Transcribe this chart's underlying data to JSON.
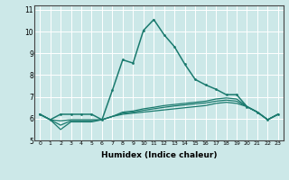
{
  "xlabel": "Humidex (Indice chaleur)",
  "x_values": [
    0,
    1,
    2,
    3,
    4,
    5,
    6,
    7,
    8,
    9,
    10,
    11,
    12,
    13,
    14,
    15,
    16,
    17,
    18,
    19,
    20,
    21,
    22,
    23
  ],
  "main_line_y": [
    6.2,
    5.95,
    6.2,
    6.2,
    6.2,
    6.2,
    5.95,
    7.3,
    8.7,
    8.55,
    10.05,
    10.55,
    9.85,
    9.3,
    8.5,
    7.8,
    7.55,
    7.35,
    7.1,
    7.1,
    6.55,
    6.3,
    5.95,
    6.2
  ],
  "line2_y": [
    6.2,
    5.95,
    5.5,
    5.85,
    5.85,
    5.85,
    5.95,
    6.1,
    6.2,
    6.25,
    6.3,
    6.35,
    6.4,
    6.45,
    6.5,
    6.55,
    6.6,
    6.7,
    6.75,
    6.7,
    6.55,
    6.3,
    5.95,
    6.2
  ],
  "line3_y": [
    6.2,
    5.95,
    5.7,
    5.9,
    5.9,
    5.9,
    5.95,
    6.1,
    6.25,
    6.3,
    6.38,
    6.45,
    6.52,
    6.58,
    6.63,
    6.68,
    6.72,
    6.8,
    6.85,
    6.8,
    6.55,
    6.3,
    5.95,
    6.2
  ],
  "line4_y": [
    6.2,
    5.95,
    5.9,
    5.95,
    5.95,
    5.95,
    5.95,
    6.1,
    6.3,
    6.35,
    6.45,
    6.52,
    6.6,
    6.65,
    6.7,
    6.75,
    6.8,
    6.9,
    6.95,
    6.9,
    6.55,
    6.3,
    5.95,
    6.2
  ],
  "bg_color": "#cce8e8",
  "grid_color": "#ffffff",
  "line_color": "#1a7a6e",
  "ylim": [
    5.0,
    11.2
  ],
  "yticks": [
    5,
    6,
    7,
    8,
    9,
    10,
    11
  ],
  "xlim": [
    -0.5,
    23.5
  ]
}
